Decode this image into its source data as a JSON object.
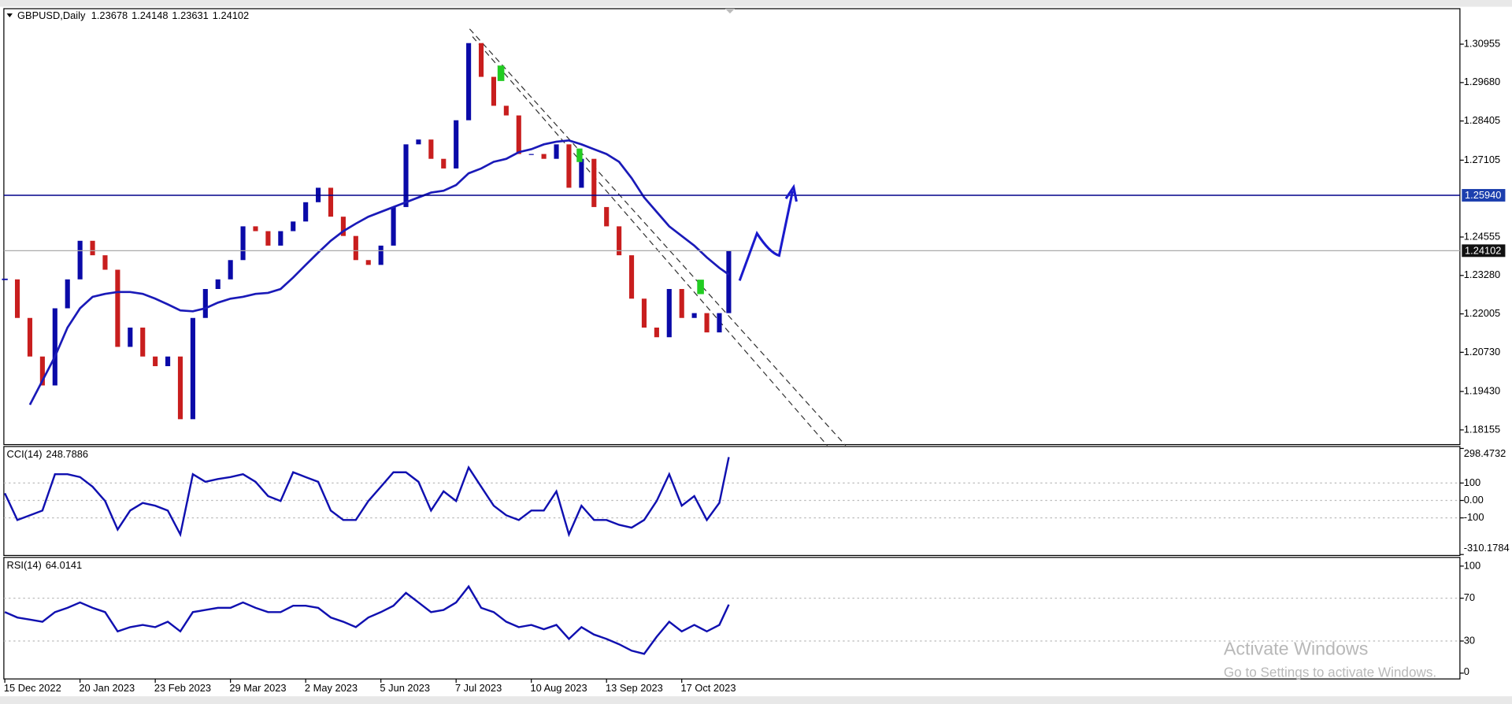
{
  "chart_data": [
    {
      "type": "candlestick",
      "title": "GBPUSD,Daily",
      "ohlc": [
        1.23678,
        1.24148,
        1.23631,
        1.24102
      ],
      "x": [
        0,
        4,
        8,
        12,
        16,
        20,
        24,
        28,
        32,
        36,
        40,
        44,
        48,
        52,
        56,
        60,
        64,
        68,
        72,
        76,
        80,
        84,
        88,
        92,
        96,
        100,
        104,
        108,
        112,
        116,
        120,
        124,
        128,
        132,
        136,
        140,
        144,
        148,
        152,
        156,
        160,
        164,
        168,
        172,
        176,
        180,
        184,
        188,
        192,
        196,
        200,
        204,
        208,
        212,
        216,
        220,
        224,
        228,
        231
      ],
      "xlim": [
        0,
        464
      ],
      "ylim": [
        1.177,
        1.321
      ],
      "yticks": [
        1.30955,
        {
          "value": 1.2968,
          "label": "1.29680"
        },
        1.28405,
        1.27105,
        1.24555,
        {
          "value": 1.2328,
          "label": "1.23280"
        },
        1.22005,
        {
          "value": 1.2073,
          "label": "1.20730"
        },
        {
          "value": 1.1943,
          "label": "1.19430"
        },
        1.18155
      ],
      "grid": false,
      "hline": {
        "value": 1.2594,
        "label": "1.25940"
      },
      "up_color": "#0a0aa8",
      "down_color": "#c81e1e",
      "series": [
        {
          "color": "#0a0aa8",
          "values": [
            1.2315,
            1.2187,
            1.2059,
            1.1963,
            1.2219,
            1.2315,
            1.2443,
            1.2395,
            1.2347,
            1.2091,
            1.2155,
            1.2059,
            1.2027,
            1.2059,
            1.1851,
            1.2187,
            1.2283,
            1.2315,
            1.2379,
            1.2491,
            1.2475,
            1.2427,
            1.2475,
            1.2507,
            1.2571,
            1.2619,
            1.2523,
            1.2459,
            1.2379,
            1.2363,
            1.2427,
            1.2555,
            1.2763,
            1.2779,
            1.2715,
            1.2683,
            1.2843,
            1.3099,
            1.2987,
            1.2891,
            1.2859,
            1.2731,
            1.2731,
            1.2715,
            1.2763,
            1.2619,
            1.2715,
            1.2555,
            1.2491,
            1.2395,
            1.2251,
            1.2155,
            1.2123,
            1.2283,
            1.2187,
            1.2203,
            1.2139,
            1.2203,
            1.24102
          ]
        },
        {
          "color": "#1a1ab8",
          "values": [
            null,
            null,
            1.1899,
            1.1979,
            1.2059,
            1.2155,
            1.2219,
            1.2257,
            1.2267,
            1.2273,
            1.2273,
            1.2267,
            1.2251,
            1.2232,
            1.2212,
            1.2209,
            1.2219,
            1.2238,
            1.2251,
            1.2257,
            1.2267,
            1.227,
            1.2283,
            1.2321,
            1.2363,
            1.2404,
            1.2443,
            1.2475,
            1.25,
            1.2523,
            1.2539,
            1.2555,
            1.2571,
            1.2587,
            1.2603,
            1.2609,
            1.2628,
            1.2667,
            1.2683,
            1.2705,
            1.2715,
            1.2737,
            1.2747,
            1.2763,
            1.2772,
            1.2776,
            1.2763,
            1.2747,
            1.2731,
            1.2705,
            1.2651,
            1.2587,
            1.2539,
            1.2491,
            1.2459,
            1.2427,
            1.2388,
            1.2353,
            1.2331
          ]
        }
      ]
    },
    {
      "type": "line",
      "title": "CCI(14)",
      "x": [
        0,
        4,
        8,
        12,
        16,
        20,
        24,
        28,
        32,
        36,
        40,
        44,
        48,
        52,
        56,
        60,
        64,
        68,
        72,
        76,
        80,
        84,
        88,
        92,
        96,
        100,
        104,
        108,
        112,
        116,
        120,
        124,
        128,
        132,
        136,
        140,
        144,
        148,
        152,
        156,
        160,
        164,
        168,
        172,
        176,
        180,
        184,
        188,
        192,
        196,
        200,
        204,
        208,
        212,
        216,
        220,
        224,
        228,
        231
      ],
      "xlim": [
        0,
        464
      ],
      "ylim": [
        -310.1784,
        298.4732
      ],
      "yticks": [
        298.4732,
        100,
        {
          "value": 0,
          "label": "0.00"
        },
        -100,
        -310.1784
      ],
      "grid": true,
      "series": [
        {
          "color": "#1010b0",
          "values": [
            41,
            -112,
            -85,
            -58,
            151,
            151,
            134,
            79,
            -3,
            -167,
            -58,
            -14,
            -30,
            -58,
            -195,
            151,
            107,
            123,
            134,
            151,
            107,
            25,
            -3,
            162,
            134,
            107,
            -58,
            -112,
            -112,
            -3,
            79,
            162,
            162,
            107,
            -58,
            52,
            -3,
            189,
            79,
            -30,
            -85,
            -112,
            -58,
            -58,
            52,
            -195,
            -30,
            -112,
            -112,
            -140,
            -156,
            -112,
            -3,
            151,
            -30,
            25,
            -112,
            -14,
            248.7886
          ]
        }
      ]
    },
    {
      "type": "line",
      "title": "RSI(14)",
      "x": [
        0,
        4,
        8,
        12,
        16,
        20,
        24,
        28,
        32,
        36,
        40,
        44,
        48,
        52,
        56,
        60,
        64,
        68,
        72,
        76,
        80,
        84,
        88,
        92,
        96,
        100,
        104,
        108,
        112,
        116,
        120,
        124,
        128,
        132,
        136,
        140,
        144,
        148,
        152,
        156,
        160,
        164,
        168,
        172,
        176,
        180,
        184,
        188,
        192,
        196,
        200,
        204,
        208,
        212,
        216,
        220,
        224,
        228,
        231
      ],
      "xlim": [
        0,
        464
      ],
      "xticks": [
        {
          "value": 0,
          "label": "15 Dec 2022"
        },
        {
          "value": 24,
          "label": "20 Jan 2023"
        },
        {
          "value": 48,
          "label": "23 Feb 2023"
        },
        {
          "value": 72,
          "label": "29 Mar 2023"
        },
        {
          "value": 96,
          "label": "2 May 2023"
        },
        {
          "value": 120,
          "label": "5 Jun 2023"
        },
        {
          "value": 144,
          "label": "7 Jul 2023"
        },
        {
          "value": 168,
          "label": "10 Aug 2023"
        },
        {
          "value": 192,
          "label": "13 Sep 2023"
        },
        {
          "value": 216,
          "label": "17 Oct 2023"
        }
      ],
      "ylim": [
        0,
        100
      ],
      "yticks": [
        100,
        70,
        30,
        0
      ],
      "grid": true,
      "series": [
        {
          "color": "#1010b0",
          "values": [
            57,
            52,
            50,
            48,
            57,
            61,
            66,
            61,
            57,
            39,
            43,
            45,
            43,
            48,
            39,
            57,
            59,
            61,
            61,
            66,
            61,
            57,
            57,
            63,
            63,
            61,
            52,
            48,
            43,
            52,
            57,
            63,
            75,
            66,
            57,
            59,
            66,
            81,
            61,
            57,
            48,
            43,
            45,
            41,
            45,
            32,
            43,
            36,
            32,
            27,
            21,
            18,
            34,
            48,
            39,
            45,
            39,
            45,
            64.0141
          ]
        }
      ]
    }
  ],
  "watermark": {
    "title": "Activate Windows",
    "subtitle": "Go to Settings to activate Windows."
  }
}
